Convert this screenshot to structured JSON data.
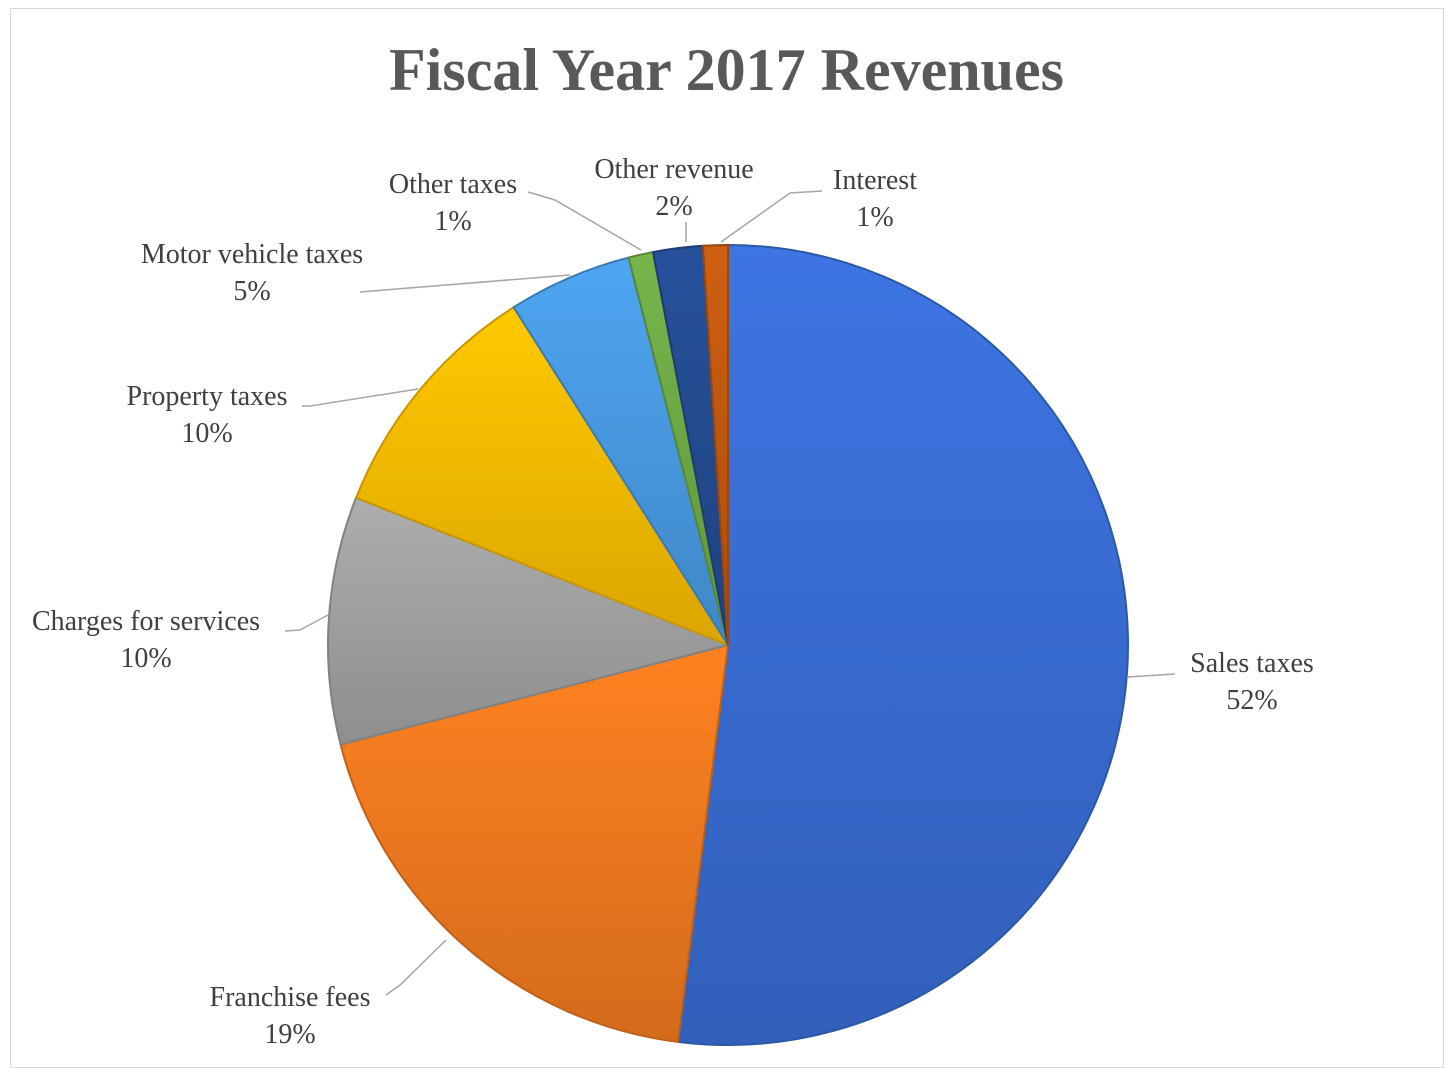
{
  "chart_data": {
    "type": "pie",
    "title": "Fiscal Year 2017 Revenues",
    "start_angle": "12 o'clock",
    "direction": "clockwise",
    "legend": "none",
    "slices": [
      {
        "name": "Sales taxes",
        "value": 52,
        "label": "52%",
        "color": "#3a6fd8"
      },
      {
        "name": "Franchise fees",
        "value": 19,
        "label": "19%",
        "color": "#f57c1f"
      },
      {
        "name": "Charges for services",
        "value": 10,
        "label": "10%",
        "color": "#a5a5a5"
      },
      {
        "name": "Property taxes",
        "value": 10,
        "label": "10%",
        "color": "#ffc000"
      },
      {
        "name": "Motor vehicle taxes",
        "value": 5,
        "label": "5%",
        "color": "#4a9de6"
      },
      {
        "name": "Other taxes",
        "value": 1,
        "label": "1%",
        "color": "#70ad47"
      },
      {
        "name": "Other revenue",
        "value": 2,
        "label": "2%",
        "color": "#244d94"
      },
      {
        "name": "Interest",
        "value": 1,
        "label": "1%",
        "color": "#c55a11"
      }
    ]
  }
}
